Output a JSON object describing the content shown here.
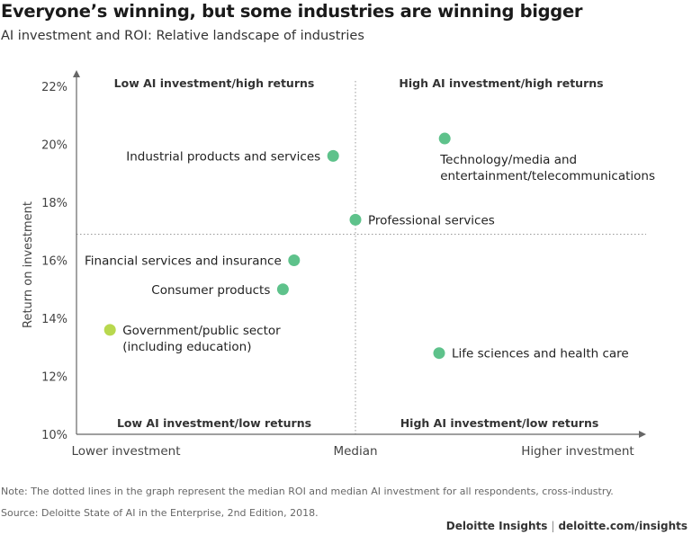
{
  "header": {
    "title": "Everyone’s winning, but some industries are winning bigger",
    "subtitle": "AI investment and ROI: Relative landscape of industries"
  },
  "footer": {
    "note": "Note: The dotted lines in the graph represent the median ROI and median AI investment for all respondents, cross-industry.",
    "source": "Source: Deloitte State of AI in the Enterprise, 2nd Edition, 2018.",
    "brand": "Deloitte Insights",
    "url": "deloitte.com/insights",
    "separator": "|"
  },
  "colors": {
    "point": "#5ec28b",
    "highlight_point": "#b8d84e",
    "axis": "#666666",
    "guide": "#999999"
  },
  "chart_data": {
    "type": "scatter",
    "title": "",
    "xlabel": "",
    "ylabel": "Return on investment",
    "x_ticks": [
      "Lower investment",
      "Median",
      "Higher investment"
    ],
    "x_range": [
      0,
      1
    ],
    "x_median": 0.5,
    "ylim": [
      10,
      22
    ],
    "y_ticks": [
      10,
      12,
      14,
      16,
      18,
      20,
      22
    ],
    "y_tick_suffix": "%",
    "y_median": 16.9,
    "grid": false,
    "quadrants": {
      "top_left": "Low AI investment/high returns",
      "top_right": "High AI investment/high returns",
      "bottom_left": "Low AI investment/low returns",
      "bottom_right": "High AI investment/low returns"
    },
    "points": [
      {
        "label": [
          "Industrial products and services"
        ],
        "x": 0.46,
        "y": 19.6,
        "label_side": "left"
      },
      {
        "label": [
          "Technology/media and",
          "entertainment/telecommunications"
        ],
        "x": 0.66,
        "y": 20.2,
        "label_side": "below"
      },
      {
        "label": [
          "Professional services"
        ],
        "x": 0.5,
        "y": 17.4,
        "label_side": "right"
      },
      {
        "label": [
          "Financial services and insurance"
        ],
        "x": 0.39,
        "y": 16.0,
        "label_side": "left"
      },
      {
        "label": [
          "Consumer products"
        ],
        "x": 0.37,
        "y": 15.0,
        "label_side": "left"
      },
      {
        "label": [
          "Government/public sector",
          "(including education)"
        ],
        "x": 0.06,
        "y": 13.6,
        "label_side": "right",
        "highlight": true
      },
      {
        "label": [
          "Life sciences and health care"
        ],
        "x": 0.65,
        "y": 12.8,
        "label_side": "right"
      }
    ]
  }
}
